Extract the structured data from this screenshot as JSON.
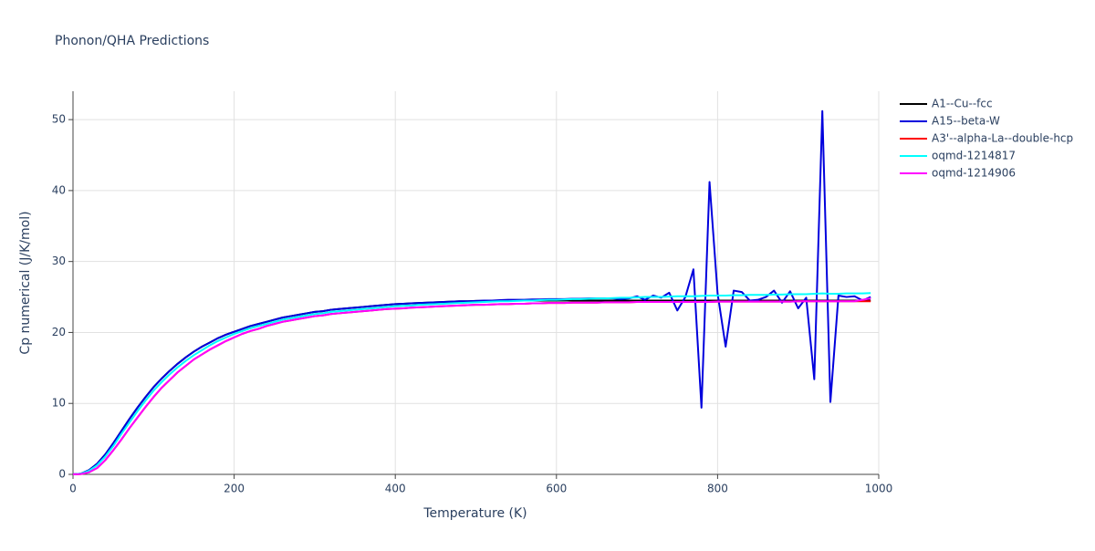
{
  "chart_data": {
    "type": "line",
    "title": "Phonon/QHA Predictions",
    "x_label": "Temperature (K)",
    "y_label": "Cp numerical (J/K/mol)",
    "xlim": [
      0,
      1000
    ],
    "xticks": [
      0,
      200,
      400,
      600,
      800,
      1000
    ],
    "ylim": [
      0,
      54
    ],
    "yticks": [
      0,
      10,
      20,
      30,
      40,
      50
    ],
    "grid": true,
    "legend": "right",
    "x": [
      0,
      10,
      20,
      30,
      40,
      50,
      60,
      70,
      80,
      90,
      100,
      110,
      120,
      130,
      140,
      150,
      160,
      170,
      180,
      190,
      200,
      210,
      220,
      230,
      240,
      250,
      260,
      270,
      280,
      290,
      300,
      310,
      320,
      330,
      340,
      350,
      360,
      370,
      380,
      390,
      400,
      410,
      420,
      430,
      440,
      450,
      460,
      470,
      480,
      490,
      500,
      510,
      520,
      530,
      540,
      550,
      560,
      570,
      580,
      590,
      600,
      610,
      620,
      630,
      640,
      650,
      660,
      670,
      680,
      690,
      700,
      710,
      720,
      730,
      740,
      750,
      760,
      770,
      780,
      790,
      800,
      810,
      820,
      830,
      840,
      850,
      860,
      870,
      880,
      890,
      900,
      910,
      920,
      930,
      940,
      950,
      960,
      970,
      980,
      990
    ],
    "series": [
      {
        "name": "A1--Cu--fcc",
        "color": "#000000",
        "values": [
          0,
          0.1,
          0.6,
          1.5,
          2.8,
          4.4,
          6.1,
          7.8,
          9.4,
          10.9,
          12.3,
          13.5,
          14.6,
          15.6,
          16.5,
          17.3,
          18.0,
          18.6,
          19.2,
          19.7,
          20.1,
          20.5,
          20.9,
          21.2,
          21.5,
          21.8,
          22.1,
          22.3,
          22.5,
          22.7,
          22.9,
          23.0,
          23.2,
          23.3,
          23.4,
          23.5,
          23.6,
          23.7,
          23.8,
          23.9,
          24.0,
          24.05,
          24.1,
          24.15,
          24.2,
          24.25,
          24.3,
          24.35,
          24.4,
          24.4,
          24.45,
          24.45,
          24.5,
          24.5,
          24.5,
          24.5,
          24.5,
          24.5,
          24.5,
          24.5,
          24.5,
          24.5,
          24.5,
          24.5,
          24.5,
          24.5,
          24.5,
          24.5,
          24.5,
          24.5,
          24.5,
          24.5,
          24.5,
          24.5,
          24.5,
          24.5,
          24.5,
          24.5,
          24.5,
          24.5,
          24.5,
          24.5,
          24.5,
          24.5,
          24.5,
          24.5,
          24.5,
          24.5,
          24.5,
          24.5,
          24.5,
          24.5,
          24.5,
          24.5,
          24.5,
          24.5,
          24.5,
          24.5,
          24.5,
          24.5
        ]
      },
      {
        "name": "A15--beta-W",
        "color": "#0000dd",
        "values": [
          0,
          0.1,
          0.6,
          1.5,
          2.8,
          4.4,
          6.1,
          7.8,
          9.4,
          10.9,
          12.3,
          13.5,
          14.6,
          15.6,
          16.5,
          17.3,
          18.0,
          18.6,
          19.2,
          19.7,
          20.1,
          20.5,
          20.9,
          21.2,
          21.5,
          21.8,
          22.1,
          22.3,
          22.5,
          22.7,
          22.9,
          23.0,
          23.2,
          23.3,
          23.4,
          23.5,
          23.6,
          23.7,
          23.8,
          23.9,
          24.0,
          24.05,
          24.1,
          24.15,
          24.2,
          24.25,
          24.3,
          24.35,
          24.4,
          24.4,
          24.45,
          24.5,
          24.5,
          24.55,
          24.6,
          24.6,
          24.6,
          24.65,
          24.65,
          24.7,
          24.7,
          24.7,
          24.75,
          24.75,
          24.8,
          24.8,
          24.8,
          24.8,
          24.7,
          24.8,
          25.1,
          24.6,
          25.2,
          24.9,
          25.6,
          23.1,
          25.0,
          28.9,
          9.4,
          41.2,
          25.5,
          18.0,
          25.9,
          25.7,
          24.5,
          24.6,
          25.0,
          25.9,
          24.2,
          25.8,
          23.4,
          24.9,
          13.4,
          51.2,
          10.2,
          25.2,
          25.0,
          25.1,
          24.5,
          25.0
        ]
      },
      {
        "name": "A3'--alpha-La--double-hcp",
        "color": "#ff0000",
        "values": [
          0,
          0.05,
          0.3,
          0.9,
          2.0,
          3.4,
          4.9,
          6.5,
          8.0,
          9.5,
          10.9,
          12.2,
          13.3,
          14.4,
          15.3,
          16.2,
          16.9,
          17.6,
          18.2,
          18.8,
          19.3,
          19.8,
          20.2,
          20.5,
          20.9,
          21.2,
          21.5,
          21.7,
          21.9,
          22.1,
          22.3,
          22.4,
          22.6,
          22.7,
          22.8,
          22.9,
          23.0,
          23.1,
          23.2,
          23.3,
          23.35,
          23.4,
          23.5,
          23.55,
          23.6,
          23.65,
          23.7,
          23.75,
          23.8,
          23.85,
          23.9,
          23.9,
          23.95,
          24.0,
          24.0,
          24.05,
          24.05,
          24.1,
          24.1,
          24.15,
          24.15,
          24.15,
          24.2,
          24.2,
          24.2,
          24.2,
          24.25,
          24.25,
          24.25,
          24.25,
          24.3,
          24.3,
          24.3,
          24.3,
          24.3,
          24.3,
          24.3,
          24.3,
          24.3,
          24.3,
          24.35,
          24.35,
          24.35,
          24.35,
          24.35,
          24.35,
          24.35,
          24.35,
          24.35,
          24.35,
          24.4,
          24.4,
          24.4,
          24.4,
          24.4,
          24.4,
          24.4,
          24.4,
          24.4,
          24.4
        ]
      },
      {
        "name": "oqmd-1214817",
        "color": "#00ffff",
        "values": [
          0,
          0.1,
          0.5,
          1.3,
          2.5,
          4.0,
          5.7,
          7.3,
          8.9,
          10.4,
          11.8,
          13.0,
          14.1,
          15.1,
          16.0,
          16.8,
          17.5,
          18.2,
          18.8,
          19.3,
          19.8,
          20.2,
          20.6,
          20.9,
          21.2,
          21.5,
          21.8,
          22.0,
          22.2,
          22.4,
          22.6,
          22.7,
          22.9,
          23.0,
          23.1,
          23.2,
          23.3,
          23.4,
          23.5,
          23.6,
          23.7,
          23.75,
          23.8,
          23.9,
          23.95,
          24.0,
          24.05,
          24.1,
          24.15,
          24.2,
          24.25,
          24.3,
          24.35,
          24.4,
          24.4,
          24.45,
          24.5,
          24.5,
          24.55,
          24.6,
          24.6,
          24.65,
          24.7,
          24.7,
          24.75,
          24.8,
          24.8,
          24.85,
          24.9,
          24.9,
          24.95,
          25.0,
          25.0,
          25.0,
          25.05,
          25.1,
          25.1,
          25.1,
          25.15,
          25.2,
          25.2,
          25.2,
          25.25,
          25.25,
          25.3,
          25.3,
          25.3,
          25.35,
          25.35,
          25.4,
          25.4,
          25.4,
          25.45,
          25.5,
          25.45,
          25.45,
          25.5,
          25.5,
          25.5,
          25.55
        ]
      },
      {
        "name": "oqmd-1214906",
        "color": "#ff00ff",
        "values": [
          0,
          0.05,
          0.3,
          0.9,
          2.0,
          3.4,
          4.9,
          6.5,
          8.0,
          9.5,
          10.9,
          12.2,
          13.3,
          14.4,
          15.3,
          16.2,
          16.9,
          17.6,
          18.2,
          18.8,
          19.3,
          19.8,
          20.2,
          20.5,
          20.9,
          21.2,
          21.5,
          21.7,
          21.9,
          22.1,
          22.3,
          22.4,
          22.6,
          22.7,
          22.8,
          22.9,
          23.0,
          23.1,
          23.2,
          23.3,
          23.35,
          23.4,
          23.5,
          23.55,
          23.6,
          23.65,
          23.7,
          23.75,
          23.8,
          23.85,
          23.9,
          23.9,
          23.95,
          24.0,
          24.0,
          24.05,
          24.05,
          24.1,
          24.1,
          24.15,
          24.15,
          24.15,
          24.2,
          24.2,
          24.2,
          24.2,
          24.25,
          24.25,
          24.25,
          24.25,
          24.3,
          24.3,
          24.3,
          24.3,
          24.3,
          24.3,
          24.3,
          24.3,
          24.3,
          24.3,
          24.35,
          24.35,
          24.35,
          24.35,
          24.35,
          24.35,
          24.35,
          24.35,
          24.35,
          24.35,
          24.4,
          24.4,
          24.4,
          24.4,
          24.4,
          24.4,
          24.4,
          24.4,
          24.6,
          24.8
        ]
      }
    ]
  }
}
